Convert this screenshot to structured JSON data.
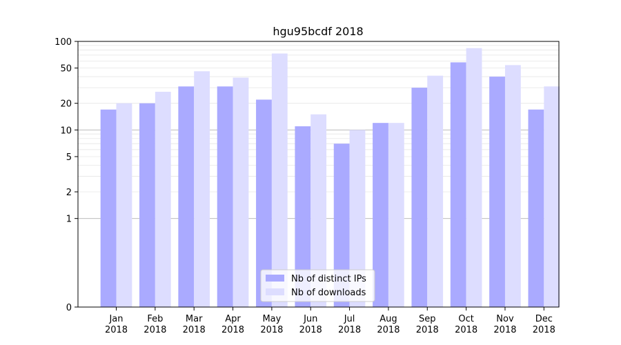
{
  "chart_data": {
    "type": "bar",
    "title": "hgu95bcdf 2018",
    "xlabel": "",
    "ylabel": "",
    "yscale": "symlog",
    "ylim": [
      0,
      100
    ],
    "yticks": [
      0,
      1,
      2,
      5,
      10,
      20,
      50,
      100
    ],
    "grid": true,
    "legend_position": "bottom-center",
    "categories": [
      [
        "Jan",
        "2018"
      ],
      [
        "Feb",
        "2018"
      ],
      [
        "Mar",
        "2018"
      ],
      [
        "Apr",
        "2018"
      ],
      [
        "May",
        "2018"
      ],
      [
        "Jun",
        "2018"
      ],
      [
        "Jul",
        "2018"
      ],
      [
        "Aug",
        "2018"
      ],
      [
        "Sep",
        "2018"
      ],
      [
        "Oct",
        "2018"
      ],
      [
        "Nov",
        "2018"
      ],
      [
        "Dec",
        "2018"
      ]
    ],
    "series": [
      {
        "name": "Nb of distinct IPs",
        "color": "#aaaaff",
        "values": [
          17,
          20,
          31,
          31,
          22,
          11,
          7,
          12,
          30,
          58,
          40,
          17
        ]
      },
      {
        "name": "Nb of downloads",
        "color": "#ddddff",
        "values": [
          20,
          27,
          46,
          39,
          73,
          15,
          10,
          12,
          41,
          84,
          54,
          31
        ]
      }
    ]
  }
}
